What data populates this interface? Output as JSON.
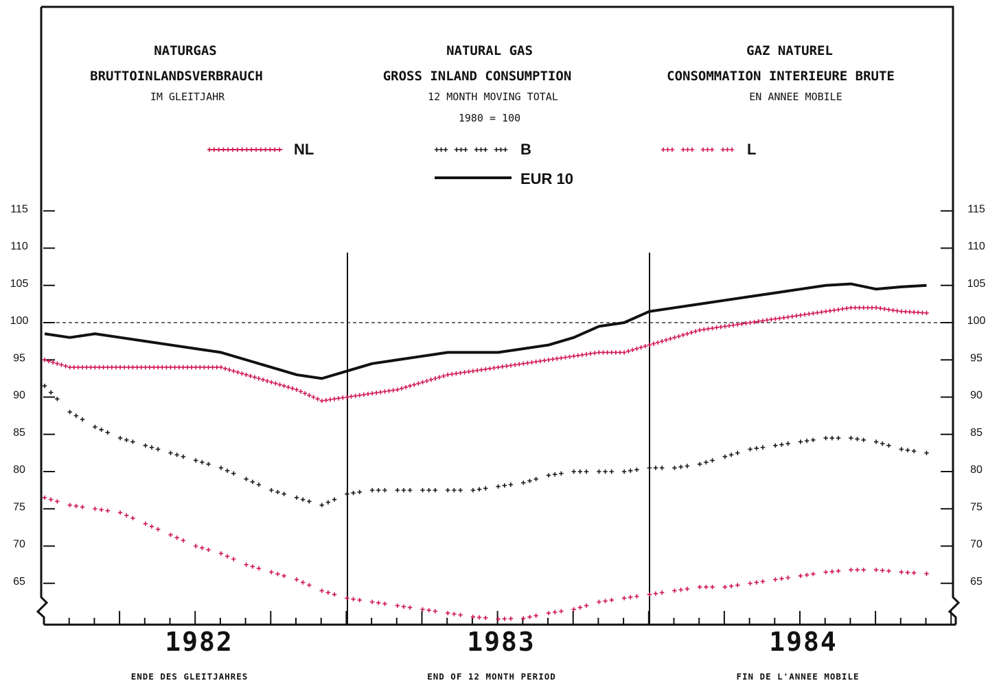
{
  "titles": {
    "de": {
      "line1": "NATURGAS",
      "line2": "BRUTTOINLANDSVERBRAUCH",
      "line3": "IM GLEITJAHR"
    },
    "en": {
      "line1": "NATURAL GAS",
      "line2": "GROSS INLAND CONSUMPTION",
      "line3": "12 MONTH MOVING TOTAL",
      "line4": "1980 = 100"
    },
    "fr": {
      "line1": "GAZ NATUREL",
      "line2": "CONSOMMATION INTERIEURE BRUTE",
      "line3": "EN ANNEE MOBILE"
    }
  },
  "footer": {
    "de": "ENDE DES GLEITJAHRES",
    "en": "END OF 12 MONTH PERIOD",
    "fr": "FIN DE L'ANNEE MOBILE"
  },
  "colors": {
    "nl": "#d01850",
    "b": "#1a1a1a",
    "l": "#d01850",
    "eur": "#111111",
    "frame": "#111111"
  },
  "chart_data": {
    "type": "line",
    "ylim": [
      60,
      115
    ],
    "yticks": [
      115,
      110,
      105,
      100,
      95,
      90,
      85,
      80,
      75,
      70,
      65
    ],
    "ytick_labels": [
      "115",
      "110",
      "105",
      "100",
      "95",
      "90",
      "85",
      "80",
      "75",
      "70",
      "65"
    ],
    "reference_line": 100,
    "axis_break": true,
    "grid": false,
    "years": [
      "1982",
      "1983",
      "1984"
    ],
    "x_months": [
      "1982-01",
      "1982-02",
      "1982-03",
      "1982-04",
      "1982-05",
      "1982-06",
      "1982-07",
      "1982-08",
      "1982-09",
      "1982-10",
      "1982-11",
      "1982-12",
      "1983-01",
      "1983-02",
      "1983-03",
      "1983-04",
      "1983-05",
      "1983-06",
      "1983-07",
      "1983-08",
      "1983-09",
      "1983-10",
      "1983-11",
      "1983-12",
      "1984-01",
      "1984-02",
      "1984-03",
      "1984-04",
      "1984-05",
      "1984-06",
      "1984-07",
      "1984-08",
      "1984-09",
      "1984-10",
      "1984-11",
      "1984-12"
    ],
    "series": [
      {
        "name": "NL",
        "style": "plus-dense",
        "values": [
          95,
          94,
          94,
          94,
          94,
          94,
          94,
          94,
          93,
          92,
          91,
          89.5,
          90,
          90.5,
          91,
          92,
          93,
          93.5,
          94,
          94.5,
          95,
          95.5,
          96,
          96,
          97,
          98,
          99,
          99.5,
          100,
          100.5,
          101,
          101.5,
          102,
          102,
          101.5,
          101.3
        ]
      },
      {
        "name": "B",
        "style": "plus-dashed",
        "values": [
          91.5,
          88,
          86,
          84.5,
          83.5,
          82.5,
          81.5,
          80.5,
          79,
          77.5,
          76.5,
          75.5,
          77,
          77.5,
          77.5,
          77.5,
          77.5,
          77.5,
          78,
          78.5,
          79.5,
          80,
          80,
          80,
          80.5,
          80.5,
          81,
          82,
          83,
          83.5,
          84,
          84.5,
          84.5,
          84,
          83,
          82.5
        ]
      },
      {
        "name": "L",
        "style": "plus-dashed",
        "values": [
          76.5,
          75.5,
          75,
          74.5,
          73,
          71.5,
          70,
          69,
          67.5,
          66.5,
          65.5,
          64,
          63,
          62.5,
          62,
          61.5,
          61,
          60.5,
          60.2,
          60.3,
          61,
          61.5,
          62.5,
          63,
          63.5,
          64,
          64.5,
          64.5,
          65,
          65.5,
          66,
          66.5,
          66.8,
          66.8,
          66.5,
          66.3
        ]
      },
      {
        "name": "EUR 10",
        "style": "solid",
        "values": [
          98.5,
          98,
          98.5,
          98,
          97.5,
          97,
          96.5,
          96,
          95,
          94,
          93,
          92.5,
          93.5,
          94.5,
          95,
          95.5,
          96,
          96,
          96,
          96.5,
          97,
          98,
          99.5,
          100,
          101.5,
          102,
          102.5,
          103,
          103.5,
          104,
          104.5,
          105,
          105.2,
          104.5,
          104.8,
          105
        ]
      }
    ],
    "legend_placement": "top"
  }
}
